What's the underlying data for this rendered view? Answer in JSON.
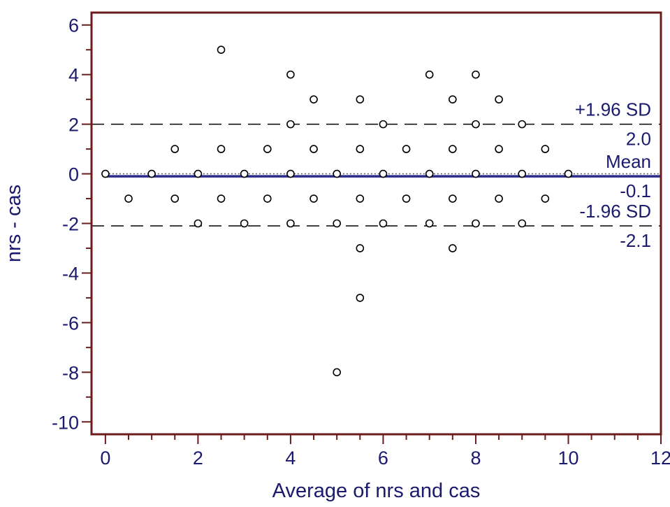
{
  "chart_data": {
    "type": "scatter",
    "title": "",
    "xlabel": "Average of nrs and cas",
    "ylabel": "nrs - cas",
    "xlim": [
      -0.3,
      12
    ],
    "ylim": [
      -10.5,
      6.5
    ],
    "xticks": [
      0,
      2,
      4,
      6,
      8,
      10,
      12
    ],
    "yticks": [
      6,
      4,
      2,
      0,
      -2,
      -4,
      -6,
      -8,
      -10
    ],
    "grid": false,
    "colors": {
      "frame": "#6b1c1c",
      "text": "#1a1a6e",
      "mean_line": "#2b2b8c",
      "points": "#000000",
      "limit_lines": "#000000"
    },
    "points": [
      {
        "x": 0,
        "y": 0
      },
      {
        "x": 0.5,
        "y": -1
      },
      {
        "x": 1,
        "y": 0
      },
      {
        "x": 1.5,
        "y": 1
      },
      {
        "x": 1.5,
        "y": -1
      },
      {
        "x": 2,
        "y": 0
      },
      {
        "x": 2,
        "y": -2
      },
      {
        "x": 2.5,
        "y": 5
      },
      {
        "x": 2.5,
        "y": 1
      },
      {
        "x": 2.5,
        "y": -1
      },
      {
        "x": 3,
        "y": 0
      },
      {
        "x": 3,
        "y": -2
      },
      {
        "x": 3.5,
        "y": 1
      },
      {
        "x": 3.5,
        "y": -1
      },
      {
        "x": 4,
        "y": 4
      },
      {
        "x": 4,
        "y": 2
      },
      {
        "x": 4,
        "y": 0
      },
      {
        "x": 4,
        "y": -2
      },
      {
        "x": 4.5,
        "y": 3
      },
      {
        "x": 4.5,
        "y": 1
      },
      {
        "x": 4.5,
        "y": -1
      },
      {
        "x": 5,
        "y": 0
      },
      {
        "x": 5,
        "y": -2
      },
      {
        "x": 5,
        "y": -8
      },
      {
        "x": 5.5,
        "y": 3
      },
      {
        "x": 5.5,
        "y": 1
      },
      {
        "x": 5.5,
        "y": -1
      },
      {
        "x": 5.5,
        "y": -3
      },
      {
        "x": 5.5,
        "y": -5
      },
      {
        "x": 6,
        "y": 2
      },
      {
        "x": 6,
        "y": 0
      },
      {
        "x": 6,
        "y": -2
      },
      {
        "x": 6.5,
        "y": 1
      },
      {
        "x": 6.5,
        "y": -1
      },
      {
        "x": 7,
        "y": 4
      },
      {
        "x": 7,
        "y": 0
      },
      {
        "x": 7,
        "y": -2
      },
      {
        "x": 7.5,
        "y": 3
      },
      {
        "x": 7.5,
        "y": 1
      },
      {
        "x": 7.5,
        "y": -1
      },
      {
        "x": 7.5,
        "y": -3
      },
      {
        "x": 8,
        "y": 4
      },
      {
        "x": 8,
        "y": 2
      },
      {
        "x": 8,
        "y": 0
      },
      {
        "x": 8,
        "y": -2
      },
      {
        "x": 8.5,
        "y": 3
      },
      {
        "x": 8.5,
        "y": 1
      },
      {
        "x": 8.5,
        "y": -1
      },
      {
        "x": 9,
        "y": 2
      },
      {
        "x": 9,
        "y": 0
      },
      {
        "x": 9,
        "y": -2
      },
      {
        "x": 9.5,
        "y": 1
      },
      {
        "x": 9.5,
        "y": -1
      },
      {
        "x": 10,
        "y": 0
      }
    ],
    "reference_lines": [
      {
        "label": "+1.96 SD",
        "value": 2.0,
        "value_label": "2.0",
        "style": "dashed"
      },
      {
        "label": "Mean",
        "value": -0.1,
        "value_label": "-0.1",
        "style": "solid"
      },
      {
        "label": "-1.96 SD",
        "value": -2.1,
        "value_label": "-2.1",
        "style": "dashed"
      }
    ],
    "zero_line": {
      "value": 0,
      "style": "dotted"
    }
  }
}
